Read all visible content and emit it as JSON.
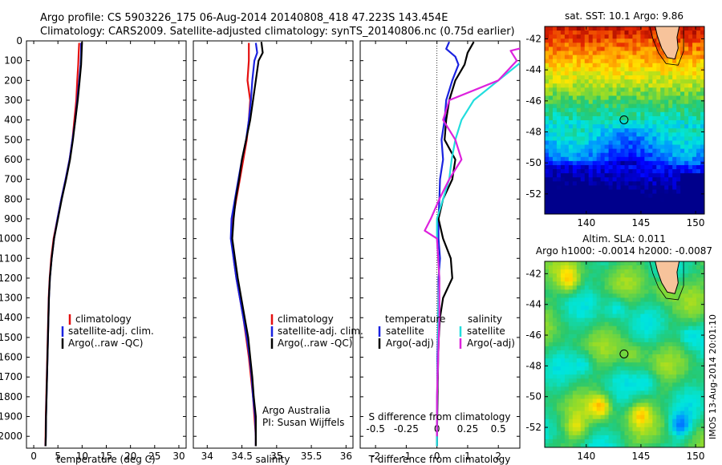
{
  "header": {
    "line1": "Argo profile: CS 5903226_175 06-Aug-2014 20140808_418 47.223S 143.454E",
    "line2": "Climatology: CARS2009. Satellite-adjusted climatology: synTS_20140806.nc (0.75d earlier)"
  },
  "colors": {
    "climatology": "#e41010",
    "satellite": "#1a22e0",
    "argo": "#000000",
    "salinity_sat": "#22dddd",
    "salinity_argo": "#dd22dd"
  },
  "chart_data": [
    {
      "type": "line",
      "id": "temperature",
      "xlabel": "temperature (deg C)",
      "xticks": [
        0,
        5,
        10,
        15,
        20,
        25,
        30
      ],
      "xlim": [
        -1.5,
        31.5
      ],
      "ylim": [
        0,
        2060
      ],
      "yticks": [
        0,
        100,
        200,
        300,
        400,
        500,
        600,
        700,
        800,
        900,
        1000,
        1100,
        1200,
        1300,
        1400,
        1500,
        1600,
        1700,
        1800,
        1900,
        2000
      ],
      "ydir": "down",
      "legend": [
        "climatology",
        "satellite-adj. clim.",
        "Argo(..raw -QC)"
      ],
      "series": [
        {
          "name": "climatology",
          "color_key": "climatology",
          "depth": [
            10,
            60,
            120,
            200,
            300,
            400,
            500,
            600,
            700,
            800,
            900,
            1000,
            1100,
            1200,
            1300,
            1400,
            1500,
            1600,
            1700,
            1800,
            1900,
            2000,
            2050
          ],
          "values": [
            9.4,
            9.3,
            9.2,
            9.0,
            8.8,
            8.4,
            8.0,
            7.4,
            6.6,
            5.7,
            4.9,
            4.1,
            3.6,
            3.3,
            3.1,
            3.0,
            2.9,
            2.8,
            2.7,
            2.6,
            2.5,
            2.45,
            2.4
          ]
        },
        {
          "name": "satellite-adj. clim.",
          "color_key": "satellite",
          "depth": [
            10,
            60,
            120,
            200,
            300,
            400,
            500,
            600,
            700,
            800,
            900,
            1000,
            1100,
            1200,
            1300,
            1400,
            1500,
            1600,
            1700,
            1800,
            1900,
            2000,
            2050
          ],
          "values": [
            9.8,
            9.8,
            9.7,
            9.4,
            9.0,
            8.6,
            8.0,
            7.4,
            6.6,
            5.7,
            4.9,
            4.2,
            3.7,
            3.35,
            3.15,
            3.05,
            2.95,
            2.85,
            2.75,
            2.65,
            2.55,
            2.5,
            2.45
          ]
        },
        {
          "name": "Argo(..raw -QC)",
          "color_key": "argo",
          "depth": [
            5,
            60,
            120,
            200,
            300,
            400,
            500,
            600,
            700,
            800,
            900,
            1000,
            1100,
            1200,
            1300,
            1400,
            1500,
            1600,
            1700,
            1800,
            1900,
            2000,
            2050
          ],
          "values": [
            10.0,
            9.9,
            9.8,
            9.5,
            9.1,
            8.6,
            8.1,
            7.5,
            6.7,
            5.8,
            5.0,
            4.2,
            3.7,
            3.35,
            3.15,
            3.05,
            2.95,
            2.85,
            2.75,
            2.65,
            2.55,
            2.5,
            2.45
          ]
        }
      ]
    },
    {
      "type": "line",
      "id": "salinity",
      "xlabel": "salinity",
      "xticks": [
        34,
        34.5,
        35,
        35.5,
        36
      ],
      "xlim": [
        33.8,
        36.1
      ],
      "ylim": [
        0,
        2060
      ],
      "ydir": "down",
      "legend": [
        "climatology",
        "satellite-adj. clim.",
        "Argo(..raw -QC)"
      ],
      "annotations": [
        "Argo Australia",
        "PI: Susan Wijffels"
      ],
      "series": [
        {
          "name": "climatology",
          "color_key": "climatology",
          "depth": [
            10,
            100,
            200,
            300,
            400,
            500,
            600,
            700,
            800,
            900,
            1000,
            1100,
            1200,
            1300,
            1400,
            1500,
            1600,
            1700,
            1800,
            1900,
            2000,
            2050
          ],
          "values": [
            34.6,
            34.6,
            34.58,
            34.62,
            34.6,
            34.57,
            34.52,
            34.47,
            34.42,
            34.37,
            34.35,
            34.38,
            34.42,
            34.47,
            34.52,
            34.56,
            34.6,
            34.63,
            34.66,
            34.68,
            34.7,
            34.7
          ]
        },
        {
          "name": "satellite-adj. clim.",
          "color_key": "satellite",
          "depth": [
            10,
            60,
            100,
            200,
            300,
            400,
            500,
            600,
            700,
            800,
            900,
            1000,
            1100,
            1200,
            1300,
            1400,
            1500,
            1600,
            1700,
            1800,
            1900,
            2000,
            2050
          ],
          "values": [
            34.7,
            34.72,
            34.68,
            34.65,
            34.63,
            34.6,
            34.56,
            34.5,
            34.45,
            34.4,
            34.35,
            34.34,
            34.38,
            34.42,
            34.47,
            34.52,
            34.57,
            34.61,
            34.64,
            34.66,
            34.69,
            34.7,
            34.7
          ]
        },
        {
          "name": "Argo(..raw -QC)",
          "color_key": "argo",
          "depth": [
            5,
            60,
            100,
            200,
            300,
            400,
            500,
            600,
            700,
            800,
            900,
            1000,
            1100,
            1200,
            1300,
            1400,
            1500,
            1600,
            1700,
            1800,
            1900,
            2000,
            2050
          ],
          "values": [
            34.78,
            34.8,
            34.74,
            34.7,
            34.66,
            34.62,
            34.56,
            34.5,
            34.46,
            34.41,
            34.38,
            34.36,
            34.4,
            34.44,
            34.49,
            34.54,
            34.59,
            34.62,
            34.65,
            34.67,
            34.7,
            34.7,
            34.7
          ]
        }
      ]
    },
    {
      "type": "line",
      "id": "difference",
      "xlabel": "T difference from climatology",
      "xlabel_top": "S difference from climatology",
      "xticks": [
        -2,
        -1,
        0,
        1,
        2
      ],
      "xlim": [
        -2.5,
        2.7
      ],
      "xticks_top": [
        -0.5,
        -0.25,
        0,
        0.25,
        0.5
      ],
      "ylim": [
        0,
        2060
      ],
      "ydir": "down",
      "legend_temperature_title": "temperature",
      "legend_salinity_title": "salinity",
      "legend_temperature": [
        "satellite",
        "Argo(-adj)"
      ],
      "legend_salinity": [
        "satellite",
        "Argo(-adj)"
      ],
      "series": [
        {
          "name": "satellite",
          "color_key": "satellite",
          "depth": [
            5,
            40,
            80,
            120,
            200,
            300,
            400,
            500,
            600,
            700,
            800,
            900,
            1000,
            1100,
            1200,
            1300,
            1400,
            1500,
            1600,
            1800,
            2000,
            2050
          ],
          "values": [
            0.4,
            0.3,
            0.6,
            0.7,
            0.5,
            0.3,
            0.25,
            0.15,
            0.2,
            0.1,
            0.08,
            0.05,
            0.05,
            0.1,
            0.05,
            0.05,
            0.04,
            0.03,
            0.02,
            0.01,
            0.0,
            0.0
          ]
        },
        {
          "name": "Argo(-adj)",
          "color_key": "argo",
          "depth": [
            5,
            60,
            120,
            200,
            300,
            400,
            500,
            600,
            700,
            800,
            900,
            1000,
            1100,
            1200,
            1300,
            1400,
            1500,
            1600,
            1800,
            2000,
            2050
          ],
          "values": [
            1.2,
            1.0,
            0.9,
            0.6,
            0.4,
            0.3,
            0.25,
            0.6,
            0.5,
            0.2,
            0.05,
            0.2,
            0.45,
            0.5,
            0.2,
            0.1,
            0.06,
            0.04,
            0.02,
            0.0,
            0.0
          ]
        },
        {
          "name": "satellite",
          "color_key": "salinity_sat",
          "depth": [
            5,
            50,
            100,
            200,
            300,
            400,
            500,
            600,
            700,
            800,
            900,
            1000,
            1200,
            1400,
            1600,
            1800,
            2000,
            2050
          ],
          "values": [
            0.8,
            0.75,
            0.7,
            0.5,
            0.3,
            0.2,
            0.15,
            0.12,
            0.1,
            0.05,
            0.0,
            0.0,
            0.02,
            0.01,
            0.01,
            0.0,
            0.0,
            0.0
          ]
        },
        {
          "name": "Argo(-adj)",
          "color_key": "salinity_argo",
          "depth": [
            5,
            50,
            100,
            200,
            300,
            400,
            500,
            600,
            700,
            800,
            900,
            960,
            1000,
            1200,
            1400,
            1600,
            1800,
            2000
          ],
          "values": [
            0.9,
            0.6,
            0.65,
            0.5,
            0.1,
            0.05,
            0.15,
            0.2,
            0.1,
            0.02,
            -0.05,
            -0.1,
            0.0,
            0.02,
            0.02,
            0.01,
            0.0,
            0.0
          ]
        }
      ]
    },
    {
      "type": "heatmap",
      "id": "sst_map",
      "title": "sat. SST: 10.1  Argo: 9.86",
      "xticks": [
        140,
        145,
        150
      ],
      "yticks": [
        -42,
        -44,
        -46,
        -48,
        -50,
        -52
      ],
      "xlim": [
        136.2,
        150.8
      ],
      "ylim": [
        -53.3,
        -41.2
      ],
      "marker": {
        "lon": 143.454,
        "lat": -47.223
      }
    },
    {
      "type": "heatmap",
      "id": "sla_map",
      "title_line1": "Altim. SLA: 0.011",
      "title_line2": "Argo h1000: -0.0014  h2000: -0.0087",
      "xticks": [
        140,
        145,
        150
      ],
      "yticks": [
        -42,
        -44,
        -46,
        -48,
        -50,
        -52
      ],
      "xlim": [
        136.2,
        150.8
      ],
      "ylim": [
        -53.3,
        -41.2
      ],
      "marker": {
        "lon": 143.454,
        "lat": -47.223
      }
    }
  ],
  "watermark": "IMOS 13-Aug-2014 20:01:10"
}
